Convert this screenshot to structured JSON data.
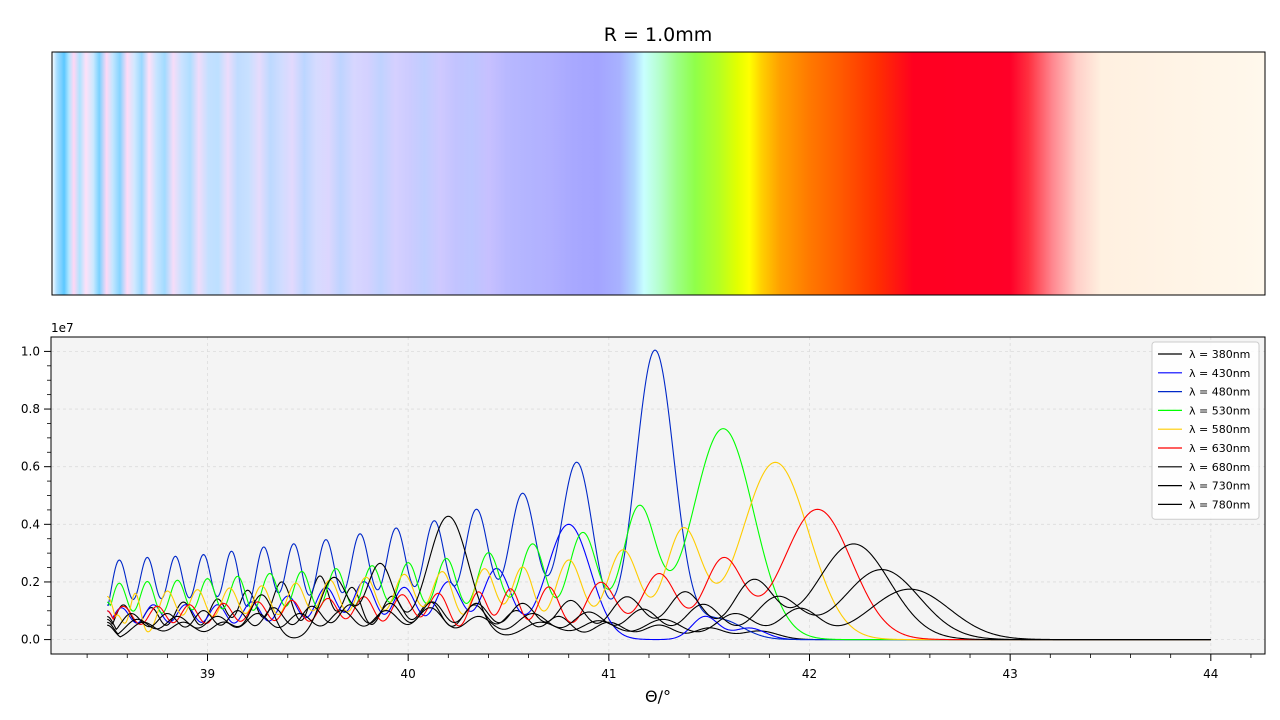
{
  "title": "R = 1.0mm",
  "colors": {
    "spectrum_stops": [
      [
        0.0,
        "#ffffff"
      ],
      [
        0.004,
        "#a8ddff"
      ],
      [
        0.01,
        "#5cc8ff"
      ],
      [
        0.014,
        "#b3e6ff"
      ],
      [
        0.018,
        "#ffd6f4"
      ],
      [
        0.023,
        "#b0e4ff"
      ],
      [
        0.028,
        "#ffe0f8"
      ],
      [
        0.034,
        "#cbe9ff"
      ],
      [
        0.039,
        "#7ad2ff"
      ],
      [
        0.045,
        "#ffd8f5"
      ],
      [
        0.05,
        "#c4e6ff"
      ],
      [
        0.056,
        "#86d4ff"
      ],
      [
        0.062,
        "#ffdaf6"
      ],
      [
        0.068,
        "#cfe9ff"
      ],
      [
        0.074,
        "#9ad8ff"
      ],
      [
        0.08,
        "#ffe0f8"
      ],
      [
        0.086,
        "#c8e4ff"
      ],
      [
        0.093,
        "#a2dbff"
      ],
      [
        0.1,
        "#f6dcf8"
      ],
      [
        0.107,
        "#c9e2ff"
      ],
      [
        0.114,
        "#b0deff"
      ],
      [
        0.121,
        "#f0dcfa"
      ],
      [
        0.129,
        "#c4e0ff"
      ],
      [
        0.137,
        "#bde0ff"
      ],
      [
        0.145,
        "#ecdcfb"
      ],
      [
        0.153,
        "#c0dcff"
      ],
      [
        0.162,
        "#c8e0ff"
      ],
      [
        0.171,
        "#e6dbfc"
      ],
      [
        0.18,
        "#bdd9ff"
      ],
      [
        0.189,
        "#d0dcff"
      ],
      [
        0.198,
        "#e2d9fd"
      ],
      [
        0.208,
        "#bcd6ff"
      ],
      [
        0.218,
        "#d6dbff"
      ],
      [
        0.228,
        "#dcd6fe"
      ],
      [
        0.238,
        "#bed4ff"
      ],
      [
        0.249,
        "#d7d6ff"
      ],
      [
        0.26,
        "#d4d1ff"
      ],
      [
        0.271,
        "#c0d2ff"
      ],
      [
        0.283,
        "#d5d0ff"
      ],
      [
        0.295,
        "#cccbff"
      ],
      [
        0.307,
        "#c0ceff"
      ],
      [
        0.32,
        "#cfc9ff"
      ],
      [
        0.333,
        "#c2c3ff"
      ],
      [
        0.346,
        "#bdc6ff"
      ],
      [
        0.36,
        "#c7c0ff"
      ],
      [
        0.375,
        "#b8b8ff"
      ],
      [
        0.392,
        "#b3b4ff"
      ],
      [
        0.41,
        "#b1b0ff"
      ],
      [
        0.43,
        "#a8a8ff"
      ],
      [
        0.45,
        "#a4a4ff"
      ],
      [
        0.468,
        "#a8b2ff"
      ],
      [
        0.48,
        "#b0d8ff"
      ],
      [
        0.488,
        "#c8ffff"
      ],
      [
        0.5,
        "#b6ffd0"
      ],
      [
        0.515,
        "#9dff86"
      ],
      [
        0.53,
        "#8fff4a"
      ],
      [
        0.55,
        "#b6ff22"
      ],
      [
        0.565,
        "#e2ff00"
      ],
      [
        0.575,
        "#ffff00"
      ],
      [
        0.585,
        "#ffd000"
      ],
      [
        0.6,
        "#ffa000"
      ],
      [
        0.625,
        "#ff7800"
      ],
      [
        0.65,
        "#ff5a00"
      ],
      [
        0.68,
        "#ff3000"
      ],
      [
        0.71,
        "#ff0020"
      ],
      [
        0.79,
        "#ff0028"
      ],
      [
        0.805,
        "#ff3040"
      ],
      [
        0.825,
        "#ff8890"
      ],
      [
        0.845,
        "#ffcfc8"
      ],
      [
        0.865,
        "#fff0e0"
      ],
      [
        1.0,
        "#fff8ec"
      ]
    ],
    "series": [
      "#000000",
      "#0000ff",
      "#0028c8",
      "#00ff00",
      "#ffcc00",
      "#ff0000",
      "#000000",
      "#000000",
      "#000000"
    ],
    "plot_bg": "#f4f4f4",
    "grid": "#dcdcdc"
  },
  "chart_data": [
    {
      "type": "heatmap",
      "title": "R = 1.0mm",
      "description_values": "color of scattered light vs angle",
      "xlim": [
        38.22,
        44.27
      ]
    },
    {
      "type": "line",
      "title": "",
      "xlabel": "Θ/°",
      "ylabel": "",
      "y_offset_label": "1e7",
      "xlim": [
        38.22,
        44.27
      ],
      "ylim": [
        -0.05,
        1.05
      ],
      "x_ticks": [
        39,
        40,
        41,
        42,
        43,
        44
      ],
      "x_tick_labels": [
        "39",
        "40",
        "41",
        "42",
        "43",
        "44"
      ],
      "y_ticks": [
        0.0,
        0.2,
        0.4,
        0.6,
        0.8,
        1.0
      ],
      "y_tick_labels": [
        "0.0",
        "0.2",
        "0.4",
        "0.6",
        "0.8",
        "1.0"
      ],
      "grid": true,
      "legend_position": "top-right",
      "series": [
        {
          "name": "λ = 380nm",
          "start_value": 0.07,
          "peaks": [
            [
              38.58,
              0.12
            ],
            [
              38.72,
              0.11
            ],
            [
              38.88,
              0.13
            ],
            [
              39.05,
              0.14
            ],
            [
              39.2,
              0.17
            ],
            [
              39.37,
              0.2
            ],
            [
              39.56,
              0.22
            ],
            [
              39.72,
              0.18
            ],
            [
              39.92,
              0.15
            ],
            [
              40.11,
              0.13
            ],
            [
              40.33,
              0.12
            ],
            [
              40.54,
              0.1
            ],
            [
              40.75,
              0.08
            ],
            [
              41.0,
              0.06
            ],
            [
              41.25,
              0.05
            ],
            [
              41.5,
              0.04
            ],
            [
              41.75,
              0.03
            ]
          ]
        },
        {
          "name": "λ = 430nm",
          "start_value": 0.1,
          "peaks": [
            [
              38.57,
              0.11
            ],
            [
              38.73,
              0.12
            ],
            [
              38.89,
              0.12
            ],
            [
              39.05,
              0.12
            ],
            [
              39.22,
              0.13
            ],
            [
              39.4,
              0.15
            ],
            [
              39.59,
              0.18
            ],
            [
              39.78,
              0.2
            ],
            [
              39.98,
              0.18
            ],
            [
              40.2,
              0.2
            ],
            [
              40.44,
              0.245
            ],
            [
              40.8,
              0.4
            ],
            [
              41.48,
              0.08
            ],
            [
              41.7,
              0.04
            ]
          ]
        },
        {
          "name": "λ = 480nm",
          "start_value": 0.12,
          "peaks": [
            [
              38.56,
              0.275
            ],
            [
              38.7,
              0.283
            ],
            [
              38.84,
              0.287
            ],
            [
              38.98,
              0.293
            ],
            [
              39.12,
              0.305
            ],
            [
              39.28,
              0.32
            ],
            [
              39.43,
              0.33
            ],
            [
              39.59,
              0.345
            ],
            [
              39.76,
              0.365
            ],
            [
              39.94,
              0.385
            ],
            [
              40.13,
              0.41
            ],
            [
              40.34,
              0.45
            ],
            [
              40.57,
              0.505
            ],
            [
              40.84,
              0.615
            ],
            [
              41.23,
              1.003
            ],
            [
              41.55,
              0.07
            ]
          ]
        },
        {
          "name": "λ = 530nm",
          "start_value": 0.13,
          "peaks": [
            [
              38.56,
              0.195
            ],
            [
              38.7,
              0.2
            ],
            [
              38.85,
              0.205
            ],
            [
              39.0,
              0.21
            ],
            [
              39.15,
              0.218
            ],
            [
              39.31,
              0.228
            ],
            [
              39.47,
              0.235
            ],
            [
              39.64,
              0.245
            ],
            [
              39.82,
              0.255
            ],
            [
              40.0,
              0.265
            ],
            [
              40.19,
              0.28
            ],
            [
              40.4,
              0.3
            ],
            [
              40.62,
              0.33
            ],
            [
              40.87,
              0.37
            ],
            [
              41.15,
              0.45
            ],
            [
              41.57,
              0.732
            ]
          ]
        },
        {
          "name": "λ = 580nm",
          "start_value": 0.15,
          "peaks": [
            [
              38.55,
              0.085
            ],
            [
              38.64,
              0.16
            ],
            [
              38.8,
              0.168
            ],
            [
              38.95,
              0.172
            ],
            [
              39.11,
              0.178
            ],
            [
              39.27,
              0.185
            ],
            [
              39.44,
              0.195
            ],
            [
              39.61,
              0.205
            ],
            [
              39.79,
              0.215
            ],
            [
              39.98,
              0.225
            ],
            [
              40.17,
              0.235
            ],
            [
              40.38,
              0.245
            ],
            [
              40.57,
              0.25
            ],
            [
              40.8,
              0.275
            ],
            [
              41.07,
              0.31
            ],
            [
              41.37,
              0.375
            ],
            [
              41.83,
              0.615
            ]
          ]
        },
        {
          "name": "λ = 630nm",
          "start_value": 0.1,
          "peaks": [
            [
              38.58,
              0.115
            ],
            [
              38.75,
              0.115
            ],
            [
              38.91,
              0.12
            ],
            [
              39.08,
              0.125
            ],
            [
              39.25,
              0.13
            ],
            [
              39.42,
              0.135
            ],
            [
              39.6,
              0.142
            ],
            [
              39.78,
              0.148
            ],
            [
              39.97,
              0.155
            ],
            [
              40.15,
              0.16
            ],
            [
              40.35,
              0.165
            ],
            [
              40.51,
              0.175
            ],
            [
              40.7,
              0.182
            ],
            [
              40.96,
              0.198
            ],
            [
              41.25,
              0.228
            ],
            [
              41.57,
              0.275
            ],
            [
              42.04,
              0.452
            ]
          ]
        },
        {
          "name": "λ = 680nm",
          "start_value": 0.08,
          "peaks": [
            [
              38.62,
              0.09
            ],
            [
              38.8,
              0.09
            ],
            [
              38.98,
              0.1
            ],
            [
              39.15,
              0.1
            ],
            [
              39.33,
              0.11
            ],
            [
              39.52,
              0.115
            ],
            [
              39.71,
              0.12
            ],
            [
              39.91,
              0.125
            ],
            [
              40.12,
              0.13
            ],
            [
              40.34,
              0.125
            ],
            [
              40.57,
              0.125
            ],
            [
              40.81,
              0.135
            ],
            [
              41.09,
              0.148
            ],
            [
              41.38,
              0.165
            ],
            [
              41.72,
              0.202
            ],
            [
              42.22,
              0.332
            ]
          ]
        },
        {
          "name": "λ = 730nm",
          "start_value": 0.06,
          "peaks": [
            [
              38.65,
              0.07
            ],
            [
              38.85,
              0.08
            ],
            [
              39.05,
              0.08
            ],
            [
              39.25,
              0.09
            ],
            [
              39.46,
              0.09
            ],
            [
              39.67,
              0.1
            ],
            [
              39.89,
              0.1
            ],
            [
              40.11,
              0.11
            ],
            [
              40.35,
              0.08
            ],
            [
              40.62,
              0.09
            ],
            [
              40.9,
              0.095
            ],
            [
              41.17,
              0.105
            ],
            [
              41.47,
              0.122
            ],
            [
              41.84,
              0.145
            ],
            [
              42.36,
              0.243
            ]
          ]
        },
        {
          "name": "λ = 780nm",
          "start_value": 0.05,
          "peaks": [
            [
              38.68,
              0.06
            ],
            [
              38.88,
              0.06
            ],
            [
              39.08,
              0.06
            ],
            [
              39.27,
              0.155
            ],
            [
              39.63,
              0.215
            ],
            [
              39.86,
              0.262
            ],
            [
              40.2,
              0.428
            ],
            [
              40.66,
              0.06
            ],
            [
              40.95,
              0.065
            ],
            [
              41.27,
              0.07
            ],
            [
              41.63,
              0.09
            ],
            [
              41.95,
              0.105
            ],
            [
              42.5,
              0.175
            ]
          ]
        }
      ]
    }
  ]
}
